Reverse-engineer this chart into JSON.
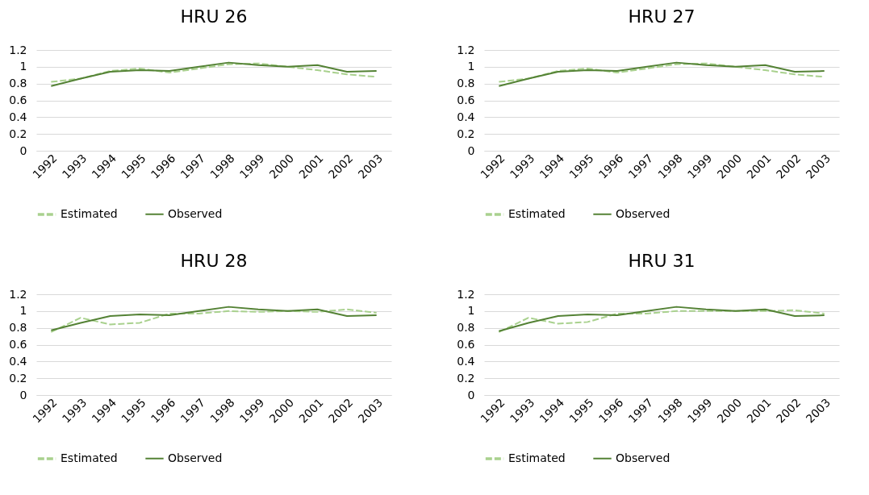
{
  "chart_data": [
    {
      "type": "line",
      "title": "HRU 26",
      "categories": [
        "1992",
        "1993",
        "1994",
        "1995",
        "1996",
        "1997",
        "1998",
        "1999",
        "2000",
        "2001",
        "2002",
        "2003"
      ],
      "ylim": [
        0,
        1.2
      ],
      "yticks": [
        0,
        0.2,
        0.4,
        0.6,
        0.8,
        1,
        1.2
      ],
      "grid": "y",
      "legend": "bottom",
      "series": [
        {
          "name": "Estimated",
          "color": "#a9d18e",
          "line_style": "dashed",
          "values": [
            0.82,
            0.86,
            0.95,
            0.98,
            0.93,
            0.98,
            1.03,
            1.04,
            1.0,
            0.96,
            0.91,
            0.88
          ]
        },
        {
          "name": "Observed",
          "color": "#548235",
          "line_style": "solid",
          "values": [
            0.77,
            0.86,
            0.94,
            0.96,
            0.95,
            1.0,
            1.05,
            1.02,
            1.0,
            1.02,
            0.94,
            0.95
          ]
        }
      ]
    },
    {
      "type": "line",
      "title": "HRU 27",
      "categories": [
        "1992",
        "1993",
        "1994",
        "1995",
        "1996",
        "1997",
        "1998",
        "1999",
        "2000",
        "2001",
        "2002",
        "2003"
      ],
      "ylim": [
        0,
        1.2
      ],
      "yticks": [
        0,
        0.2,
        0.4,
        0.6,
        0.8,
        1,
        1.2
      ],
      "grid": "y",
      "legend": "bottom",
      "series": [
        {
          "name": "Estimated",
          "color": "#a9d18e",
          "line_style": "dashed",
          "values": [
            0.82,
            0.86,
            0.95,
            0.98,
            0.93,
            0.98,
            1.03,
            1.04,
            1.0,
            0.96,
            0.91,
            0.88
          ]
        },
        {
          "name": "Observed",
          "color": "#548235",
          "line_style": "solid",
          "values": [
            0.77,
            0.86,
            0.94,
            0.96,
            0.95,
            1.0,
            1.05,
            1.02,
            1.0,
            1.02,
            0.94,
            0.95
          ]
        }
      ]
    },
    {
      "type": "line",
      "title": "HRU 28",
      "categories": [
        "1992",
        "1993",
        "1994",
        "1995",
        "1996",
        "1997",
        "1998",
        "1999",
        "2000",
        "2001",
        "2002",
        "2003"
      ],
      "ylim": [
        0,
        1.2
      ],
      "yticks": [
        0,
        0.2,
        0.4,
        0.6,
        0.8,
        1,
        1.2
      ],
      "grid": "y",
      "legend": "bottom",
      "series": [
        {
          "name": "Estimated",
          "color": "#a9d18e",
          "line_style": "dashed",
          "values": [
            0.75,
            0.92,
            0.84,
            0.86,
            0.97,
            0.97,
            1.0,
            0.99,
            1.0,
            0.99,
            1.02,
            0.98
          ]
        },
        {
          "name": "Observed",
          "color": "#548235",
          "line_style": "solid",
          "values": [
            0.77,
            0.86,
            0.94,
            0.96,
            0.95,
            1.0,
            1.05,
            1.02,
            1.0,
            1.02,
            0.94,
            0.95
          ]
        }
      ]
    },
    {
      "type": "line",
      "title": "HRU 31",
      "categories": [
        "1992",
        "1993",
        "1994",
        "1995",
        "1996",
        "1997",
        "1998",
        "1999",
        "2000",
        "2001",
        "2002",
        "2003"
      ],
      "ylim": [
        0,
        1.2
      ],
      "yticks": [
        0,
        0.2,
        0.4,
        0.6,
        0.8,
        1,
        1.2
      ],
      "grid": "y",
      "legend": "bottom",
      "series": [
        {
          "name": "Estimated",
          "color": "#a9d18e",
          "line_style": "dashed",
          "values": [
            0.75,
            0.92,
            0.85,
            0.87,
            0.97,
            0.97,
            1.0,
            1.0,
            1.0,
            1.0,
            1.01,
            0.97
          ]
        },
        {
          "name": "Observed",
          "color": "#548235",
          "line_style": "solid",
          "values": [
            0.76,
            0.86,
            0.94,
            0.96,
            0.95,
            1.0,
            1.05,
            1.02,
            1.0,
            1.02,
            0.94,
            0.95
          ]
        }
      ]
    }
  ]
}
